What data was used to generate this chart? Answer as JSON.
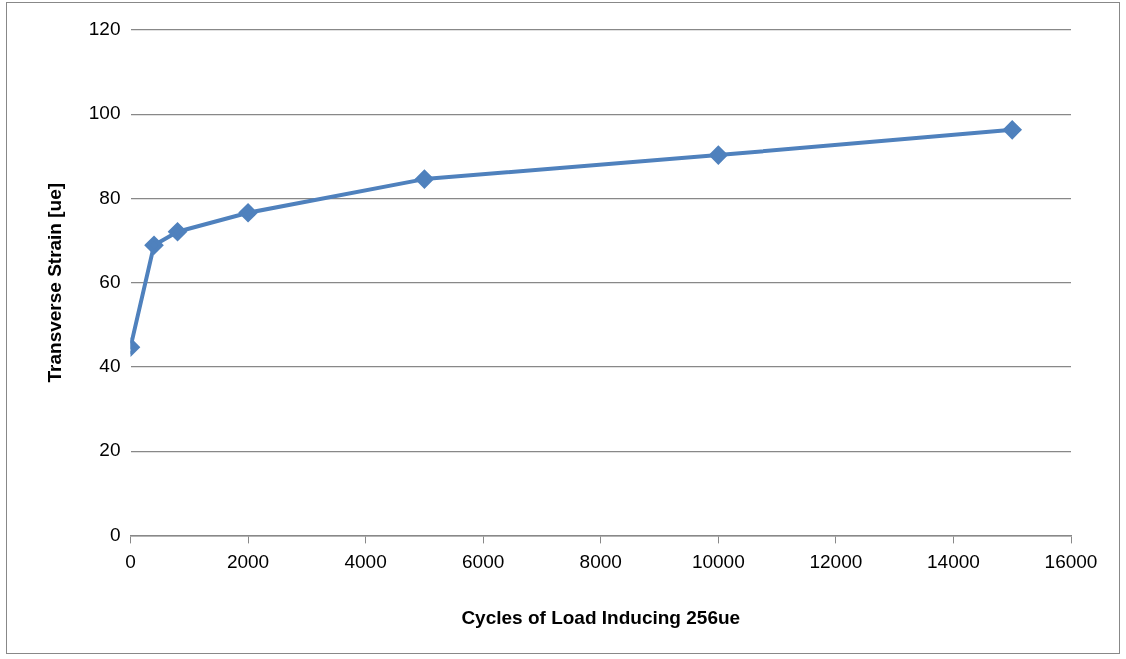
{
  "chart_data": {
    "type": "line",
    "xlabel": "Cycles of Load Inducing 256ue",
    "ylabel": "Transverse Strain [ue]",
    "x": [
      0,
      400,
      800,
      2000,
      5000,
      10000,
      15000
    ],
    "series": [
      {
        "color": "#4f81bd",
        "values": [
          44.7,
          68.9,
          72.1,
          76.6,
          84.6,
          90.3,
          96.3
        ]
      }
    ],
    "xlim": [
      0,
      16000
    ],
    "xticks": [
      0,
      2000,
      4000,
      6000,
      8000,
      10000,
      12000,
      14000,
      16000
    ],
    "ylim": [
      0,
      120
    ],
    "yticks": [
      0,
      20,
      40,
      60,
      80,
      100,
      120
    ],
    "grid": "y",
    "legend": false,
    "marker": "diamond",
    "line_style": "solid"
  }
}
